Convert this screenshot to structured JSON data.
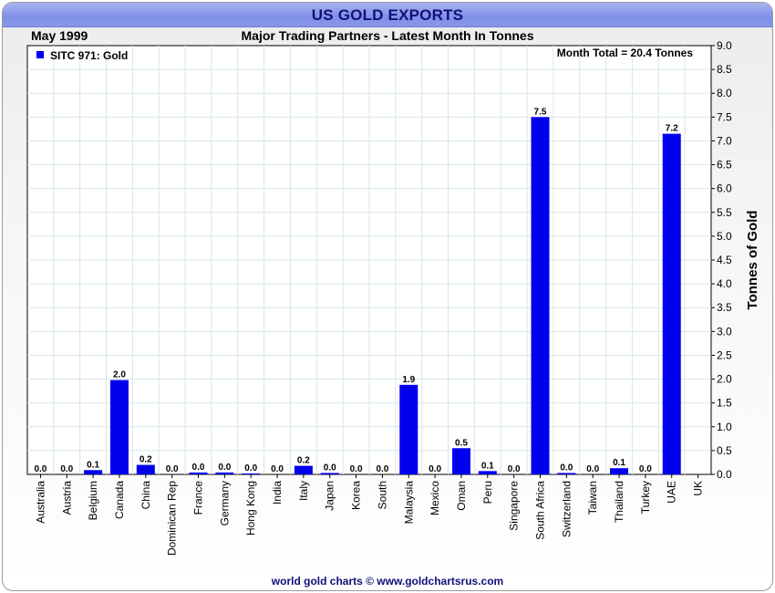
{
  "header": {
    "title": "US GOLD EXPORTS",
    "month": "May 1999",
    "subtitle": "Major Trading Partners - Latest Month In Tonnes"
  },
  "footer": {
    "credit": "world gold charts © www.goldchartsrus.com"
  },
  "colors": {
    "bar": "#0000ee",
    "title_text": "#10107a",
    "grid": "#d7e6ec"
  },
  "chart_data": {
    "type": "bar",
    "title": "US GOLD EXPORTS",
    "subtitle": "Major Trading Partners - Latest Month In Tonnes",
    "legend": "SITC 971: Gold",
    "legend_position": "top-left",
    "annotation": "Month Total = 20.4 Tonnes",
    "ylabel": "Tonnes of Gold",
    "xlabel": "",
    "ylim": [
      0,
      9
    ],
    "y_ticks": [
      "0.0",
      "0.5",
      "1.0",
      "1.5",
      "2.0",
      "2.5",
      "3.0",
      "3.5",
      "4.0",
      "4.5",
      "5.0",
      "5.5",
      "6.0",
      "6.5",
      "7.0",
      "7.5",
      "8.0",
      "8.5",
      "9.0"
    ],
    "y_axis_side": "right",
    "grid": true,
    "categories": [
      "Australia",
      "Austria",
      "Belgium",
      "Canada",
      "China",
      "Dominican Rep",
      "France",
      "Germany",
      "Hong Kong",
      "India",
      "Italy",
      "Japan",
      "Korea",
      "South",
      "Malaysia",
      "Mexico",
      "Oman",
      "Peru",
      "Singapore",
      "South Africa",
      "Switzerland",
      "Taiwan",
      "Thailand",
      "Turkey",
      "UAE",
      "UK"
    ],
    "values": [
      0.0,
      0.0,
      0.1,
      2.0,
      0.2,
      0.0,
      0.0,
      0.0,
      0.0,
      0.0,
      0.2,
      0.0,
      0.0,
      0.0,
      1.9,
      0.0,
      0.5,
      0.1,
      0.0,
      7.5,
      0.0,
      0.0,
      0.1,
      0.0,
      7.2,
      null
    ],
    "plotted_values": [
      0.0,
      0.0,
      0.09,
      1.98,
      0.2,
      0.0,
      0.04,
      0.04,
      0.02,
      0.0,
      0.18,
      0.03,
      0.0,
      0.0,
      1.88,
      0.0,
      0.55,
      0.07,
      0.0,
      7.5,
      0.03,
      0.0,
      0.13,
      0.0,
      7.15,
      null
    ],
    "value_labels": [
      "0.0",
      "0.0",
      "0.1",
      "2.0",
      "0.2",
      "0.0",
      "0.0",
      "0.0",
      "0.0",
      "0.0",
      "0.2",
      "0.0",
      "0.0",
      "0.0",
      "1.9",
      "0.0",
      "0.5",
      "0.1",
      "0.0",
      "7.5",
      "0.0",
      "0.0",
      "0.1",
      "0.0",
      "7.2",
      ""
    ]
  }
}
